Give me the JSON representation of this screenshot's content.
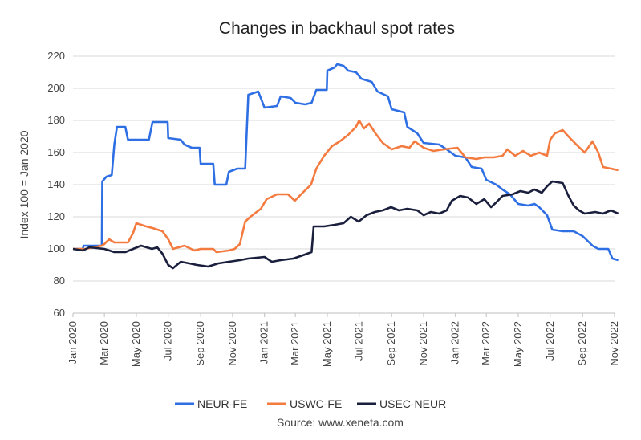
{
  "chart_data": {
    "type": "line",
    "title": "Changes in backhaul spot rates",
    "ylabel": "Index 100 = Jan 2020",
    "xlabel": "",
    "ylim": [
      60,
      220
    ],
    "yticks": [
      "60",
      "80",
      "100",
      "120",
      "140",
      "160",
      "180",
      "200",
      "220"
    ],
    "xlim": [
      "2020-01",
      "2022-11"
    ],
    "xticks": [
      {
        "date": "2020-01",
        "label": "Jan 2020"
      },
      {
        "date": "2020-03",
        "label": "Mar 2020"
      },
      {
        "date": "2020-05",
        "label": "May 2020"
      },
      {
        "date": "2020-07",
        "label": "Jul 2020"
      },
      {
        "date": "2020-09",
        "label": "Sep 2020"
      },
      {
        "date": "2020-11",
        "label": "Nov 2020"
      },
      {
        "date": "2021-01",
        "label": "Jan 2021"
      },
      {
        "date": "2021-03",
        "label": "Mar 2021"
      },
      {
        "date": "2021-05",
        "label": "May 2021"
      },
      {
        "date": "2021-07",
        "label": "Jul 2021"
      },
      {
        "date": "2021-09",
        "label": "Sep 2021"
      },
      {
        "date": "2021-11",
        "label": "Nov 2021"
      },
      {
        "date": "2022-01",
        "label": "Jan 2022"
      },
      {
        "date": "2022-03",
        "label": "Mar 2022"
      },
      {
        "date": "2022-05",
        "label": "May 2022"
      },
      {
        "date": "2022-07",
        "label": "Jul 2022"
      },
      {
        "date": "2022-09",
        "label": "Sep 2022"
      },
      {
        "date": "2022-11",
        "label": "Nov 2022"
      }
    ],
    "grid": true,
    "legend_position": "bottom",
    "source": "Source: www.xeneta.com",
    "series": [
      {
        "name": "NEUR-FE",
        "color": "#2f6fe4",
        "points": [
          [
            "2020-01-01",
            100
          ],
          [
            "2020-01-20",
            100
          ],
          [
            "2020-01-21",
            102
          ],
          [
            "2020-02-25",
            102
          ],
          [
            "2020-02-26",
            142
          ],
          [
            "2020-03-05",
            145
          ],
          [
            "2020-03-15",
            146
          ],
          [
            "2020-03-20",
            165
          ],
          [
            "2020-03-25",
            176
          ],
          [
            "2020-04-10",
            176
          ],
          [
            "2020-04-15",
            168
          ],
          [
            "2020-05-25",
            168
          ],
          [
            "2020-06-01",
            179
          ],
          [
            "2020-06-30",
            179
          ],
          [
            "2020-07-01",
            169
          ],
          [
            "2020-07-25",
            168
          ],
          [
            "2020-08-01",
            165
          ],
          [
            "2020-08-15",
            163
          ],
          [
            "2020-08-30",
            163
          ],
          [
            "2020-09-01",
            153
          ],
          [
            "2020-09-25",
            153
          ],
          [
            "2020-09-28",
            140
          ],
          [
            "2020-10-20",
            140
          ],
          [
            "2020-10-25",
            148
          ],
          [
            "2020-11-10",
            150
          ],
          [
            "2020-11-25",
            150
          ],
          [
            "2020-12-01",
            196
          ],
          [
            "2020-12-20",
            198
          ],
          [
            "2021-01-01",
            188
          ],
          [
            "2021-01-25",
            189
          ],
          [
            "2021-02-01",
            195
          ],
          [
            "2021-02-20",
            194
          ],
          [
            "2021-03-01",
            191
          ],
          [
            "2021-03-20",
            190
          ],
          [
            "2021-04-01",
            191
          ],
          [
            "2021-04-10",
            199
          ],
          [
            "2021-04-30",
            199
          ],
          [
            "2021-05-01",
            211
          ],
          [
            "2021-05-15",
            213
          ],
          [
            "2021-05-20",
            215
          ],
          [
            "2021-06-01",
            214
          ],
          [
            "2021-06-10",
            211
          ],
          [
            "2021-06-25",
            210
          ],
          [
            "2021-07-05",
            206
          ],
          [
            "2021-07-25",
            204
          ],
          [
            "2021-08-05",
            198
          ],
          [
            "2021-08-25",
            195
          ],
          [
            "2021-09-01",
            187
          ],
          [
            "2021-09-25",
            185
          ],
          [
            "2021-10-01",
            176
          ],
          [
            "2021-10-20",
            172
          ],
          [
            "2021-11-01",
            166
          ],
          [
            "2021-12-01",
            165
          ],
          [
            "2021-12-15",
            162
          ],
          [
            "2022-01-01",
            158
          ],
          [
            "2022-01-20",
            157
          ],
          [
            "2022-02-01",
            151
          ],
          [
            "2022-02-20",
            150
          ],
          [
            "2022-03-01",
            143
          ],
          [
            "2022-03-20",
            140
          ],
          [
            "2022-04-01",
            137
          ],
          [
            "2022-04-15",
            134
          ],
          [
            "2022-05-01",
            128
          ],
          [
            "2022-05-20",
            127
          ],
          [
            "2022-06-01",
            128
          ],
          [
            "2022-06-10",
            126
          ],
          [
            "2022-06-25",
            121
          ],
          [
            "2022-07-05",
            112
          ],
          [
            "2022-07-25",
            111
          ],
          [
            "2022-08-15",
            111
          ],
          [
            "2022-09-01",
            108
          ],
          [
            "2022-09-20",
            102
          ],
          [
            "2022-10-01",
            100
          ],
          [
            "2022-10-20",
            100
          ],
          [
            "2022-10-28",
            94
          ],
          [
            "2022-11-08",
            93
          ]
        ]
      },
      {
        "name": "USWC-FE",
        "color": "#f47b3f",
        "points": [
          [
            "2020-01-01",
            100
          ],
          [
            "2020-01-25",
            100
          ],
          [
            "2020-02-10",
            101
          ],
          [
            "2020-02-25",
            102
          ],
          [
            "2020-03-01",
            103
          ],
          [
            "2020-03-10",
            106
          ],
          [
            "2020-03-20",
            104
          ],
          [
            "2020-04-15",
            104
          ],
          [
            "2020-04-25",
            110
          ],
          [
            "2020-05-01",
            116
          ],
          [
            "2020-05-20",
            114
          ],
          [
            "2020-06-01",
            113
          ],
          [
            "2020-06-20",
            111
          ],
          [
            "2020-07-01",
            106
          ],
          [
            "2020-07-10",
            100
          ],
          [
            "2020-08-01",
            102
          ],
          [
            "2020-08-20",
            99
          ],
          [
            "2020-09-01",
            100
          ],
          [
            "2020-09-25",
            100
          ],
          [
            "2020-10-01",
            98
          ],
          [
            "2020-10-25",
            99
          ],
          [
            "2020-11-05",
            100
          ],
          [
            "2020-11-15",
            103
          ],
          [
            "2020-11-25",
            117
          ],
          [
            "2020-12-05",
            120
          ],
          [
            "2020-12-25",
            125
          ],
          [
            "2021-01-05",
            131
          ],
          [
            "2021-01-25",
            134
          ],
          [
            "2021-02-15",
            134
          ],
          [
            "2021-02-28",
            130
          ],
          [
            "2021-03-15",
            135
          ],
          [
            "2021-03-31",
            140
          ],
          [
            "2021-04-10",
            150
          ],
          [
            "2021-04-25",
            158
          ],
          [
            "2021-05-10",
            164
          ],
          [
            "2021-05-25",
            167
          ],
          [
            "2021-06-10",
            171
          ],
          [
            "2021-06-25",
            176
          ],
          [
            "2021-07-01",
            180
          ],
          [
            "2021-07-10",
            175
          ],
          [
            "2021-07-20",
            178
          ],
          [
            "2021-08-01",
            172
          ],
          [
            "2021-08-15",
            166
          ],
          [
            "2021-09-01",
            162
          ],
          [
            "2021-09-20",
            164
          ],
          [
            "2021-10-05",
            163
          ],
          [
            "2021-10-15",
            167
          ],
          [
            "2021-11-01",
            163
          ],
          [
            "2021-11-20",
            161
          ],
          [
            "2021-12-10",
            162
          ],
          [
            "2022-01-05",
            163
          ],
          [
            "2022-01-20",
            157
          ],
          [
            "2022-02-10",
            156
          ],
          [
            "2022-02-25",
            157
          ],
          [
            "2022-03-15",
            157
          ],
          [
            "2022-04-01",
            158
          ],
          [
            "2022-04-10",
            162
          ],
          [
            "2022-04-25",
            158
          ],
          [
            "2022-05-10",
            161
          ],
          [
            "2022-05-25",
            158
          ],
          [
            "2022-06-10",
            160
          ],
          [
            "2022-06-25",
            158
          ],
          [
            "2022-07-01",
            168
          ],
          [
            "2022-07-10",
            172
          ],
          [
            "2022-07-25",
            174
          ],
          [
            "2022-08-05",
            170
          ],
          [
            "2022-08-20",
            165
          ],
          [
            "2022-09-05",
            160
          ],
          [
            "2022-09-20",
            167
          ],
          [
            "2022-10-01",
            160
          ],
          [
            "2022-10-10",
            151
          ],
          [
            "2022-10-25",
            150
          ],
          [
            "2022-11-08",
            149
          ]
        ]
      },
      {
        "name": "USEC-NEUR",
        "color": "#1a1f3d",
        "points": [
          [
            "2020-01-01",
            100
          ],
          [
            "2020-01-20",
            99
          ],
          [
            "2020-02-01",
            101
          ],
          [
            "2020-03-01",
            100
          ],
          [
            "2020-03-20",
            98
          ],
          [
            "2020-04-10",
            98
          ],
          [
            "2020-04-25",
            100
          ],
          [
            "2020-05-10",
            102
          ],
          [
            "2020-05-31",
            100
          ],
          [
            "2020-06-10",
            101
          ],
          [
            "2020-06-20",
            97
          ],
          [
            "2020-07-01",
            90
          ],
          [
            "2020-07-10",
            88
          ],
          [
            "2020-07-25",
            92
          ],
          [
            "2020-08-10",
            91
          ],
          [
            "2020-08-25",
            90
          ],
          [
            "2020-09-15",
            89
          ],
          [
            "2020-10-05",
            91
          ],
          [
            "2020-10-25",
            92
          ],
          [
            "2020-11-15",
            93
          ],
          [
            "2020-12-01",
            94
          ],
          [
            "2021-01-01",
            95
          ],
          [
            "2021-01-15",
            92
          ],
          [
            "2021-02-01",
            93
          ],
          [
            "2021-02-25",
            94
          ],
          [
            "2021-03-15",
            96
          ],
          [
            "2021-04-01",
            98
          ],
          [
            "2021-04-05",
            114
          ],
          [
            "2021-04-25",
            114
          ],
          [
            "2021-05-15",
            115
          ],
          [
            "2021-06-01",
            116
          ],
          [
            "2021-06-15",
            120
          ],
          [
            "2021-06-30",
            117
          ],
          [
            "2021-07-15",
            121
          ],
          [
            "2021-07-31",
            123
          ],
          [
            "2021-08-15",
            124
          ],
          [
            "2021-08-31",
            126
          ],
          [
            "2021-09-15",
            124
          ],
          [
            "2021-10-01",
            125
          ],
          [
            "2021-10-20",
            124
          ],
          [
            "2021-11-01",
            121
          ],
          [
            "2021-11-15",
            123
          ],
          [
            "2021-12-01",
            122
          ],
          [
            "2021-12-15",
            124
          ],
          [
            "2021-12-25",
            130
          ],
          [
            "2022-01-10",
            133
          ],
          [
            "2022-01-25",
            132
          ],
          [
            "2022-02-10",
            128
          ],
          [
            "2022-02-25",
            131
          ],
          [
            "2022-03-10",
            126
          ],
          [
            "2022-03-20",
            129
          ],
          [
            "2022-04-01",
            133
          ],
          [
            "2022-04-20",
            134
          ],
          [
            "2022-05-05",
            136
          ],
          [
            "2022-05-20",
            135
          ],
          [
            "2022-06-01",
            137
          ],
          [
            "2022-06-15",
            135
          ],
          [
            "2022-06-25",
            139
          ],
          [
            "2022-07-05",
            142
          ],
          [
            "2022-07-25",
            141
          ],
          [
            "2022-08-05",
            133
          ],
          [
            "2022-08-15",
            127
          ],
          [
            "2022-08-25",
            124
          ],
          [
            "2022-09-05",
            122
          ],
          [
            "2022-09-25",
            123
          ],
          [
            "2022-10-10",
            122
          ],
          [
            "2022-10-25",
            124
          ],
          [
            "2022-11-08",
            122
          ]
        ]
      }
    ]
  }
}
